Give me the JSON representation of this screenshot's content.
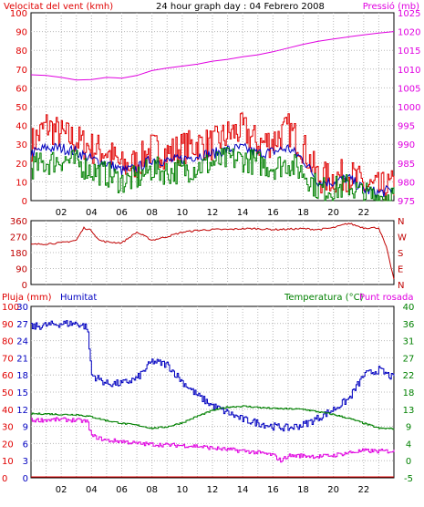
{
  "colors": {
    "background": "#ffffff",
    "axis": "#000000",
    "grid": "#b8b8b8",
    "wind": "#e00000",
    "wind_avg": "#0000c0",
    "wind_gust_low": "#008000",
    "pressure": "#e000e0",
    "direction": "#c00000",
    "rain": "#e00000",
    "humidity": "#0000c0",
    "temperature": "#008000",
    "dewpoint": "#e000e0"
  },
  "header": {
    "left_title": "Velocitat del vent (kmh)",
    "center_title": "24 hour graph day : 04 Febrero 2008",
    "right_title": "Pressió (mb)"
  },
  "x_axis_ticks": [
    "02",
    "04",
    "06",
    "08",
    "10",
    "12",
    "14",
    "16",
    "18",
    "20",
    "22"
  ],
  "chart_data": [
    {
      "type": "line",
      "panel": "wind",
      "x_range_hours": [
        0,
        24
      ],
      "left_axis": {
        "label": "Velocitat del vent (kmh)",
        "ylim": [
          0,
          100
        ],
        "ticks": [
          "100",
          "90",
          "80",
          "70",
          "60",
          "50",
          "40",
          "30",
          "20",
          "10",
          "0"
        ]
      },
      "right_axis": {
        "label": "Pressió (mb)",
        "ylim": [
          975,
          1025
        ],
        "ticks": [
          "1025",
          "1020",
          "1015",
          "1010",
          "1005",
          "1000",
          "995",
          "990",
          "985",
          "980",
          "975"
        ]
      },
      "grid": true,
      "series": [
        {
          "role": "gust",
          "axis": "left",
          "x": [
            0,
            1,
            2,
            3,
            4,
            5,
            6,
            7,
            8,
            9,
            10,
            11,
            12,
            13,
            14,
            15,
            16,
            17,
            18,
            19,
            20,
            21,
            22,
            23,
            24
          ],
          "values": [
            30,
            40,
            35,
            32,
            28,
            26,
            18,
            20,
            28,
            25,
            28,
            30,
            30,
            35,
            38,
            30,
            32,
            38,
            28,
            12,
            12,
            14,
            8,
            6,
            8
          ]
        },
        {
          "role": "average",
          "axis": "left",
          "x": [
            0,
            1,
            2,
            3,
            4,
            5,
            6,
            7,
            8,
            9,
            10,
            11,
            12,
            13,
            14,
            15,
            16,
            17,
            18,
            19,
            20,
            21,
            22,
            23,
            24
          ],
          "values": [
            25,
            28,
            28,
            26,
            22,
            20,
            16,
            17,
            22,
            21,
            22,
            24,
            25,
            27,
            28,
            25,
            26,
            28,
            22,
            10,
            10,
            12,
            6,
            4,
            6
          ]
        },
        {
          "role": "low",
          "axis": "left",
          "x": [
            0,
            1,
            2,
            3,
            4,
            5,
            6,
            7,
            8,
            9,
            10,
            11,
            12,
            13,
            14,
            15,
            16,
            17,
            18,
            19,
            20,
            21,
            22,
            23,
            24
          ],
          "values": [
            18,
            20,
            22,
            20,
            16,
            14,
            10,
            12,
            17,
            15,
            16,
            18,
            20,
            22,
            22,
            20,
            18,
            20,
            15,
            6,
            6,
            8,
            3,
            2,
            3
          ]
        },
        {
          "role": "pressure",
          "axis": "right",
          "x": [
            0,
            1,
            2,
            3,
            4,
            5,
            6,
            7,
            8,
            9,
            10,
            11,
            12,
            13,
            14,
            15,
            16,
            17,
            18,
            19,
            20,
            21,
            22,
            23,
            24
          ],
          "values": [
            1008.5,
            1008.3,
            1007.8,
            1007.1,
            1007.2,
            1007.8,
            1007.6,
            1008.3,
            1009.6,
            1010.3,
            1010.8,
            1011.3,
            1012.1,
            1012.6,
            1013.3,
            1013.8,
            1014.6,
            1015.6,
            1016.6,
            1017.4,
            1018.0,
            1018.6,
            1019.1,
            1019.6,
            1020.0
          ]
        }
      ]
    },
    {
      "type": "line",
      "panel": "wind_direction",
      "x_range_hours": [
        0,
        24
      ],
      "left_axis": {
        "ylim": [
          0,
          360
        ],
        "ticks": [
          "360",
          "270",
          "180",
          "90",
          "0"
        ]
      },
      "right_axis": {
        "ticks": [
          "N",
          "W",
          "S",
          "E",
          "N"
        ]
      },
      "grid": true,
      "series": [
        {
          "role": "direction",
          "x": [
            0,
            1,
            2,
            3,
            3.5,
            4,
            4.5,
            5,
            6,
            7,
            8,
            9,
            10,
            11,
            12,
            13,
            14,
            15,
            16,
            17,
            18,
            19,
            20,
            21,
            22,
            23,
            23.5,
            24
          ],
          "values": [
            225,
            230,
            235,
            250,
            320,
            305,
            250,
            240,
            235,
            295,
            250,
            270,
            295,
            305,
            310,
            310,
            315,
            315,
            310,
            312,
            315,
            310,
            320,
            345,
            320,
            320,
            210,
            30
          ]
        }
      ]
    },
    {
      "type": "line",
      "panel": "humidity_temperature",
      "x_range_hours": [
        0,
        24
      ],
      "left_axis_1": {
        "label": "Pluja (mm)",
        "ylim": [
          0,
          100
        ],
        "ticks": [
          "100",
          "90",
          "80",
          "70",
          "60",
          "50",
          "40",
          "30",
          "20",
          "10",
          "0"
        ]
      },
      "left_axis_2": {
        "label": "Humitat",
        "ylim": [
          0,
          30
        ],
        "ticks": [
          "30",
          "27",
          "24",
          "21",
          "18",
          "15",
          "12",
          "9",
          "6",
          "3",
          "0"
        ]
      },
      "right_axis": {
        "label": "Temperatura (°C)",
        "label_2": "Punt rosada",
        "ylim": [
          -5,
          40
        ],
        "ticks": [
          "40",
          "36",
          "31",
          "27",
          "22",
          "18",
          "13",
          "9",
          "4",
          "0",
          "-5"
        ]
      },
      "grid": true,
      "series": [
        {
          "role": "rain",
          "axis": "left_1",
          "x": [
            0,
            24
          ],
          "values": [
            0,
            0
          ]
        },
        {
          "role": "humidity",
          "axis": "left_2",
          "x": [
            0,
            1,
            2,
            3,
            3.7,
            4,
            5,
            6,
            7,
            8,
            9,
            10,
            11,
            12,
            13,
            14,
            15,
            16,
            17,
            18,
            19,
            20,
            21,
            22,
            23,
            24
          ],
          "values": [
            88,
            89,
            90,
            90,
            88,
            60,
            55,
            55,
            58,
            68,
            66,
            56,
            48,
            42,
            38,
            34,
            32,
            30,
            29,
            31,
            35,
            40,
            46,
            60,
            63,
            58
          ]
        },
        {
          "role": "temperature",
          "axis": "right",
          "x": [
            0,
            1,
            2,
            3,
            4,
            5,
            6,
            7,
            8,
            9,
            10,
            11,
            12,
            13,
            14,
            15,
            16,
            17,
            18,
            19,
            20,
            21,
            22,
            23,
            24
          ],
          "values": [
            11.8,
            11.8,
            11.6,
            11.6,
            11.0,
            10.0,
            9.3,
            8.8,
            8.0,
            8.4,
            9.5,
            11.2,
            12.7,
            13.6,
            13.8,
            13.5,
            13.2,
            13.1,
            13.0,
            12.3,
            11.6,
            10.6,
            9.3,
            8.0,
            7.9
          ]
        },
        {
          "role": "dewpoint",
          "axis": "right",
          "x": [
            0,
            1,
            2,
            3,
            3.7,
            4,
            5,
            6,
            7,
            8,
            9,
            10,
            11,
            12,
            13,
            14,
            15,
            16,
            16.5,
            17,
            18,
            19,
            20,
            21,
            22,
            23,
            24
          ],
          "values": [
            10.1,
            10.2,
            10.3,
            10.1,
            9.8,
            6.0,
            4.8,
            4.6,
            4.0,
            3.8,
            3.6,
            3.5,
            3.3,
            2.8,
            2.4,
            2.1,
            1.6,
            1.0,
            -0.5,
            0.8,
            0.8,
            0.6,
            0.9,
            1.6,
            2.1,
            2.0,
            2.0
          ]
        }
      ]
    }
  ],
  "panel3_labels": {
    "rain": "Pluja (mm)",
    "humidity": "Humitat",
    "temperature": "Temperatura (°C)",
    "dewpoint": "Punt rosada"
  }
}
